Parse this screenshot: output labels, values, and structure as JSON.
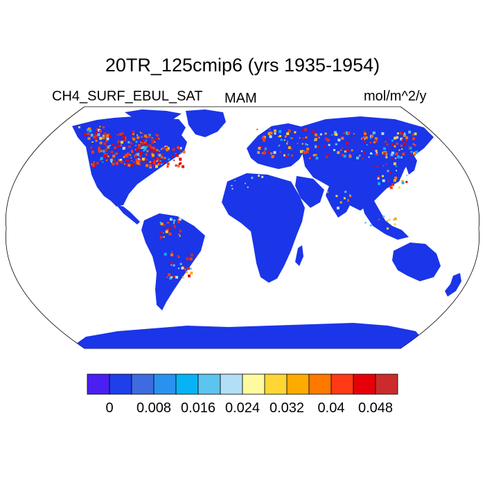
{
  "title": "20TR_125cmip6 (yrs 1935-1954)",
  "variable": "CH4_SURF_EBUL_SAT",
  "season": "MAM",
  "units": "mol/m^2/y",
  "colors": {
    "background": "#ffffff",
    "ocean": "#ffffff",
    "land_base": "#1b35e8",
    "outline": "#000000"
  },
  "colorbar": {
    "colors": [
      "#4b1ff2",
      "#1e3fe9",
      "#3f6be0",
      "#2992ef",
      "#07b3f5",
      "#5cc4f0",
      "#b2def6",
      "#fff9a0",
      "#ffd633",
      "#ffaa00",
      "#ff7800",
      "#ff3a14",
      "#e6000a",
      "#cc2b2b"
    ],
    "tick_labels": [
      "0",
      "0.008",
      "0.016",
      "0.024",
      "0.032",
      "0.04",
      "0.048"
    ]
  }
}
